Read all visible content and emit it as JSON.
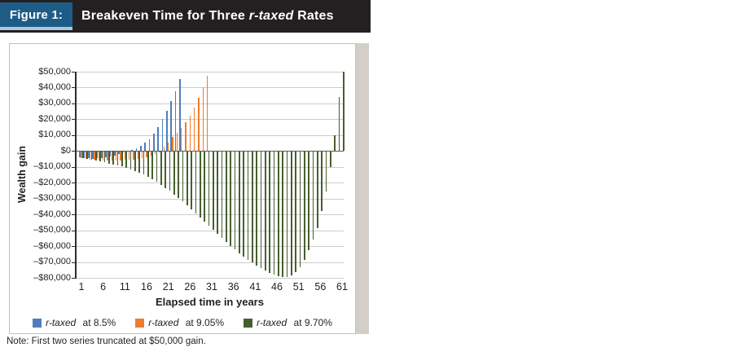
{
  "header": {
    "figure_label": "Figure 1:",
    "title_pre": "Breakeven Time for Three ",
    "title_italic": "r-taxed",
    "title_post": " Rates"
  },
  "note": "Note: First two series truncated at $50,000 gain.",
  "colors": {
    "header_bg": "#242021",
    "figure_box_bg": "#1d5c87",
    "figure_box_underline": "#abc7de",
    "side_strip": "#d3cfc8",
    "gridline": "#cccccc",
    "zero_axis": "#595959",
    "series_blue": "#4e7dbd",
    "series_orange": "#ee7c2b",
    "series_green": "#465f2f"
  },
  "chart_data": {
    "type": "bar",
    "title": "Breakeven Time for Three r-taxed Rates",
    "xlabel": "Elapsed time in years",
    "ylabel": "Wealth gain",
    "legend_position": "bottom",
    "grid": true,
    "ylim": [
      -80000,
      50000
    ],
    "y_tick_step": 10000,
    "y_tick_labels": [
      "$50,000",
      "$40,000",
      "$30,000",
      "$20,000",
      "$10,000",
      "$0",
      "–$10,000",
      "–$20,000",
      "–$30,000",
      "–$40,000",
      "–$50,000",
      "–$60,000",
      "–$70,000",
      "–$80,000"
    ],
    "x_tick_labels": [
      1,
      6,
      11,
      16,
      21,
      26,
      31,
      36,
      41,
      46,
      51,
      56,
      61
    ],
    "x_range": [
      1,
      61
    ],
    "truncation_note": "First two series truncated at $50,000 gain",
    "series": [
      {
        "name": "r-taxed at 8.5%",
        "name_italic": "r-taxed",
        "name_rest": " at 8.5%",
        "color": "#4e7dbd",
        "values": [
          -4100,
          -4400,
          -4600,
          -4700,
          -4600,
          -4500,
          -4100,
          -3600,
          -2900,
          -2100,
          -1000,
          300,
          900,
          1900,
          3300,
          5200,
          7600,
          11200,
          15300,
          20100,
          25300,
          31300,
          37600,
          45300,
          null,
          null,
          null,
          null,
          null,
          null,
          null,
          null,
          null,
          null,
          null,
          null,
          null,
          null,
          null,
          null,
          null,
          null,
          null,
          null,
          null,
          null,
          null,
          null,
          null,
          null,
          null,
          null,
          null,
          null,
          null,
          null,
          null,
          null,
          null,
          null,
          null
        ]
      },
      {
        "name": "r-taxed at 9.05%",
        "name_italic": "r-taxed",
        "name_rest": " at 9.05%",
        "color": "#ee7c2b",
        "values": [
          -4300,
          -4900,
          -5300,
          -5600,
          -5700,
          -5800,
          -5800,
          -5800,
          -5800,
          -5800,
          -5700,
          -5500,
          -5300,
          -4900,
          -4400,
          -3800,
          -3000,
          -2100,
          -1000,
          2900,
          5500,
          8900,
          11500,
          14500,
          18000,
          22500,
          27500,
          33500,
          40000,
          47500,
          null,
          null,
          null,
          null,
          null,
          null,
          null,
          null,
          null,
          null,
          null,
          null,
          null,
          null,
          null,
          null,
          null,
          null,
          null,
          null,
          null,
          null,
          null,
          null,
          null,
          null,
          null,
          null,
          null,
          null,
          null
        ]
      },
      {
        "name": "r-taxed at 9.70%",
        "name_italic": "r-taxed",
        "name_rest": " at 9.70%",
        "color": "#465f2f",
        "values": [
          -4300,
          -5000,
          -5600,
          -6100,
          -6600,
          -7200,
          -7800,
          -8400,
          -9000,
          -9700,
          -10500,
          -11400,
          -12400,
          -13500,
          -14800,
          -16200,
          -17800,
          -19500,
          -21300,
          -23200,
          -25200,
          -27300,
          -29500,
          -31800,
          -34200,
          -36700,
          -39300,
          -41900,
          -44500,
          -47100,
          -49700,
          -52300,
          -54900,
          -57400,
          -59800,
          -62100,
          -64300,
          -66400,
          -68400,
          -70300,
          -72100,
          -73800,
          -75400,
          -76800,
          -78000,
          -78900,
          -79400,
          -79300,
          -78400,
          -76400,
          -73200,
          -68600,
          -62400,
          -56000,
          -48500,
          -38000,
          -25500,
          -10000,
          10000,
          34000,
          50000
        ]
      }
    ]
  }
}
